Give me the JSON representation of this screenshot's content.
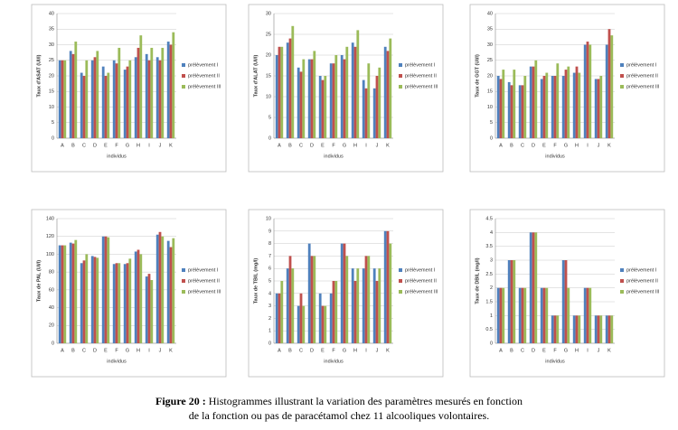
{
  "chart_data": [
    {
      "type": "bar",
      "y_label": "Taux d'ASAT (UI/l)",
      "x_label": "individus",
      "legend": "right",
      "grid": true,
      "categories": [
        "A",
        "B",
        "C",
        "D",
        "E",
        "F",
        "G",
        "H",
        "I",
        "J",
        "K"
      ],
      "ylim": [
        0,
        40
      ],
      "yticks": [
        0,
        5,
        10,
        15,
        20,
        25,
        30,
        35,
        40
      ],
      "series": [
        {
          "name": "prélèvement I",
          "color": "#4f81bd",
          "values": [
            25,
            28,
            21,
            25,
            23,
            25,
            22,
            26,
            27,
            26,
            31
          ]
        },
        {
          "name": "prélèvement II",
          "color": "#c0504d",
          "values": [
            25,
            27,
            20,
            26,
            20,
            24,
            23,
            29,
            25,
            25,
            30
          ]
        },
        {
          "name": "prélèvement III",
          "color": "#9bbb59",
          "values": [
            25,
            31,
            25,
            28,
            21,
            29,
            25,
            33,
            29,
            29,
            34
          ]
        }
      ]
    },
    {
      "type": "bar",
      "y_label": "Taux d'ALAT (UI/l)",
      "x_label": "individus",
      "legend": "right",
      "grid": true,
      "categories": [
        "A",
        "B",
        "C",
        "D",
        "E",
        "F",
        "G",
        "H",
        "I",
        "J",
        "K"
      ],
      "ylim": [
        0,
        30
      ],
      "yticks": [
        0,
        5,
        10,
        15,
        20,
        25,
        30
      ],
      "series": [
        {
          "name": "prélèvement I",
          "color": "#4f81bd",
          "values": [
            20,
            23,
            17,
            19,
            15,
            18,
            20,
            23,
            14,
            12,
            22
          ]
        },
        {
          "name": "prélèvement II",
          "color": "#c0504d",
          "values": [
            22,
            24,
            16,
            19,
            14,
            18,
            19,
            22,
            12,
            15,
            21
          ]
        },
        {
          "name": "prélèvement III",
          "color": "#9bbb59",
          "values": [
            22,
            27,
            19,
            21,
            15,
            20,
            22,
            26,
            18,
            17,
            24
          ]
        }
      ]
    },
    {
      "type": "bar",
      "y_label": "Taux de GGT (UI/l)",
      "x_label": "individus",
      "legend": "right",
      "grid": true,
      "categories": [
        "A",
        "B",
        "C",
        "D",
        "E",
        "F",
        "G",
        "H",
        "I",
        "J",
        "K"
      ],
      "ylim": [
        0,
        40
      ],
      "yticks": [
        0,
        5,
        10,
        15,
        20,
        25,
        30,
        35,
        40
      ],
      "series": [
        {
          "name": "prélèvement I",
          "color": "#4f81bd",
          "values": [
            20,
            18,
            17,
            23,
            19,
            20,
            20,
            21,
            30,
            19,
            30
          ]
        },
        {
          "name": "prélèvement II",
          "color": "#c0504d",
          "values": [
            19,
            17,
            17,
            23,
            20,
            20,
            22,
            23,
            31,
            19,
            35
          ]
        },
        {
          "name": "prélèvement III",
          "color": "#9bbb59",
          "values": [
            22,
            22,
            20,
            25,
            21,
            24,
            23,
            21,
            30,
            20,
            33
          ]
        }
      ]
    },
    {
      "type": "bar",
      "y_label": "Taux de PAL (UI/l)",
      "x_label": "individus",
      "legend": "right",
      "grid": true,
      "categories": [
        "A",
        "B",
        "C",
        "D",
        "E",
        "F",
        "G",
        "H",
        "I",
        "J",
        "K"
      ],
      "ylim": [
        0,
        140
      ],
      "yticks": [
        0,
        20,
        40,
        60,
        80,
        100,
        120,
        140
      ],
      "series": [
        {
          "name": "prélèvement I",
          "color": "#4f81bd",
          "values": [
            110,
            113,
            90,
            98,
            120,
            89,
            89,
            103,
            75,
            122,
            115
          ]
        },
        {
          "name": "prélèvement II",
          "color": "#c0504d",
          "values": [
            110,
            112,
            93,
            97,
            120,
            90,
            90,
            105,
            78,
            125,
            108
          ]
        },
        {
          "name": "prélèvement III",
          "color": "#9bbb59",
          "values": [
            110,
            116,
            100,
            96,
            119,
            90,
            95,
            100,
            71,
            120,
            118
          ]
        }
      ]
    },
    {
      "type": "bar",
      "y_label": "Taux de TBIL (mg/l)",
      "x_label": "individus",
      "legend": "right",
      "grid": true,
      "categories": [
        "A",
        "B",
        "C",
        "D",
        "E",
        "F",
        "G",
        "H",
        "I",
        "J",
        "K"
      ],
      "ylim": [
        0,
        10
      ],
      "yticks": [
        0,
        1,
        2,
        3,
        4,
        5,
        6,
        7,
        8,
        9,
        10
      ],
      "series": [
        {
          "name": "prélèvement I",
          "color": "#4f81bd",
          "values": [
            4,
            6,
            3,
            8,
            4,
            4,
            8,
            6,
            6,
            6,
            9
          ]
        },
        {
          "name": "prélèvement II",
          "color": "#c0504d",
          "values": [
            4,
            7,
            4,
            7,
            3,
            5,
            8,
            5,
            7,
            5,
            9
          ]
        },
        {
          "name": "prélèvement III",
          "color": "#9bbb59",
          "values": [
            5,
            6,
            3,
            7,
            3,
            5,
            7,
            6,
            7,
            6,
            8
          ]
        }
      ]
    },
    {
      "type": "bar",
      "y_label": "Taux de DBIL (mg/l)",
      "x_label": "individus",
      "legend": "right",
      "grid": true,
      "categories": [
        "A",
        "B",
        "C",
        "D",
        "E",
        "F",
        "G",
        "H",
        "I",
        "J",
        "K"
      ],
      "ylim": [
        0,
        4.5
      ],
      "yticks": [
        0,
        0.5,
        1,
        1.5,
        2,
        2.5,
        3,
        3.5,
        4,
        4.5
      ],
      "series": [
        {
          "name": "prélèvement I",
          "color": "#4f81bd",
          "values": [
            2,
            3,
            2,
            4,
            2,
            1,
            3,
            1,
            2,
            1,
            1
          ]
        },
        {
          "name": "prélèvement II",
          "color": "#c0504d",
          "values": [
            2,
            3,
            2,
            4,
            2,
            1,
            3,
            1,
            2,
            1,
            1
          ]
        },
        {
          "name": "prélèvement III",
          "color": "#9bbb59",
          "values": [
            2,
            3,
            2,
            4,
            2,
            1,
            2,
            1,
            2,
            1,
            1
          ]
        }
      ]
    }
  ],
  "caption": {
    "label": "Figure 20 :",
    "lines": [
      "Histogrammes illustrant la variation des paramètres mesurés en fonction",
      "de la fonction ou pas de paracétamol chez 11 alcooliques volontaires."
    ]
  }
}
